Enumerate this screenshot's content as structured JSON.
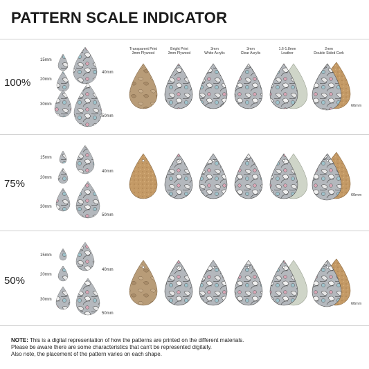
{
  "title": "PATTERN SCALE INDICATOR",
  "headers": [
    "Transparent Print\n3mm Plywood",
    "Bright Print\n3mm Plywood",
    "3mm\nWhite Acrylic",
    "3mm\nClear Acrylic",
    "1.6-1.8mm\nLeather",
    "2mm\nDouble Sided Cork"
  ],
  "rows": [
    {
      "percent": "100%",
      "sizes": [
        "15mm",
        "20mm",
        "30mm",
        "40mm",
        "50mm"
      ],
      "big_label": "60mm"
    },
    {
      "percent": "75%",
      "sizes": [
        "15mm",
        "20mm",
        "30mm",
        "40mm",
        "50mm"
      ],
      "big_label": "60mm"
    },
    {
      "percent": "50%",
      "sizes": [
        "15mm",
        "20mm",
        "30mm",
        "40mm",
        "50mm"
      ],
      "big_label": "60mm"
    }
  ],
  "note": {
    "label": "NOTE:",
    "line1": " This is a digital representation of how the patterns are printed on the different materials.",
    "line2": "Please be aware there are some characteristics that can't be represented digitally.",
    "line3": "Also note, the placement of the pattern varies on each shape."
  },
  "colors": {
    "plywood": "#b59a78",
    "pattern_base": "#a9adb2",
    "leather_back": "#cfd5c8",
    "cork": "#c49a66",
    "accent_pink": "#d9a6b5",
    "accent_blue": "#9fc3cc"
  }
}
